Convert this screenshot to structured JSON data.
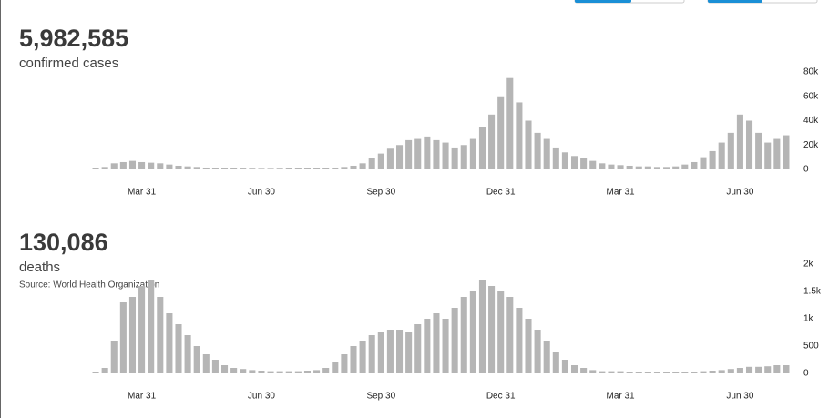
{
  "chart_data": [
    {
      "type": "bar",
      "headline": "5,982,585",
      "label": "confirmed cases",
      "color": "#b5b5b5",
      "categories": [
        null,
        null,
        null,
        null,
        null,
        "Mar 31",
        null,
        null,
        null,
        null,
        null,
        null,
        null,
        null,
        null,
        null,
        null,
        null,
        "Jun 30",
        null,
        null,
        null,
        null,
        null,
        null,
        null,
        null,
        null,
        null,
        null,
        null,
        "Sep 30",
        null,
        null,
        null,
        null,
        null,
        null,
        null,
        null,
        null,
        null,
        null,
        null,
        "Dec 31",
        null,
        null,
        null,
        null,
        null,
        null,
        null,
        null,
        null,
        null,
        null,
        null,
        "Mar 31",
        null,
        null,
        null,
        null,
        null,
        null,
        null,
        null,
        null,
        null,
        null,
        null,
        "Jun 30",
        null,
        null,
        null,
        null,
        null
      ],
      "values": [
        1000,
        2000,
        5000,
        6000,
        7000,
        6000,
        5500,
        5000,
        4000,
        3000,
        2500,
        2000,
        1500,
        1200,
        1000,
        800,
        700,
        600,
        500,
        500,
        600,
        800,
        900,
        1000,
        1000,
        1200,
        1500,
        2000,
        3000,
        5000,
        9000,
        13000,
        17000,
        20000,
        24000,
        25000,
        27000,
        24000,
        22000,
        18000,
        20000,
        25000,
        35000,
        45000,
        60000,
        75000,
        55000,
        40000,
        30000,
        25000,
        18000,
        14000,
        11000,
        9000,
        7000,
        5000,
        4000,
        3500,
        3000,
        2500,
        2500,
        2000,
        2000,
        2500,
        4000,
        6000,
        10000,
        15000,
        22000,
        30000,
        45000,
        40000,
        30000,
        22000,
        25000,
        28000
      ],
      "ylim": [
        0,
        80000
      ],
      "yticks": [
        0,
        {
          "value": 20000,
          "label": "20k"
        },
        {
          "value": 40000,
          "label": "40k"
        },
        {
          "value": 60000,
          "label": "60k"
        },
        {
          "value": 80000,
          "label": "80k"
        }
      ]
    },
    {
      "type": "bar",
      "headline": "130,086",
      "label": "deaths",
      "source": "Source: World Health Organization",
      "color": "#b5b5b5",
      "categories": [
        null,
        null,
        null,
        null,
        null,
        "Mar 31",
        null,
        null,
        null,
        null,
        null,
        null,
        null,
        null,
        null,
        null,
        null,
        null,
        "Jun 30",
        null,
        null,
        null,
        null,
        null,
        null,
        null,
        null,
        null,
        null,
        null,
        null,
        "Sep 30",
        null,
        null,
        null,
        null,
        null,
        null,
        null,
        null,
        null,
        null,
        null,
        null,
        "Dec 31",
        null,
        null,
        null,
        null,
        null,
        null,
        null,
        null,
        null,
        null,
        null,
        null,
        "Mar 31",
        null,
        null,
        null,
        null,
        null,
        null,
        null,
        null,
        null,
        null,
        null,
        null,
        "Jun 30",
        null,
        null,
        null,
        null,
        null
      ],
      "values": [
        20,
        100,
        600,
        1300,
        1400,
        1600,
        1700,
        1400,
        1100,
        900,
        700,
        500,
        350,
        250,
        150,
        100,
        80,
        60,
        50,
        40,
        40,
        40,
        40,
        50,
        60,
        100,
        200,
        350,
        500,
        600,
        700,
        750,
        800,
        800,
        750,
        900,
        1000,
        1100,
        1000,
        1200,
        1400,
        1500,
        1700,
        1600,
        1500,
        1400,
        1200,
        1000,
        800,
        600,
        400,
        250,
        150,
        100,
        60,
        40,
        40,
        40,
        30,
        30,
        20,
        20,
        20,
        20,
        30,
        30,
        40,
        50,
        60,
        80,
        100,
        120,
        120,
        130,
        150,
        150
      ],
      "ylim": [
        0,
        2000
      ],
      "yticks": [
        0,
        500,
        {
          "value": 1000,
          "label": "1k"
        },
        {
          "value": 1500,
          "label": "1.5k"
        },
        {
          "value": 2000,
          "label": "2k"
        }
      ]
    }
  ]
}
